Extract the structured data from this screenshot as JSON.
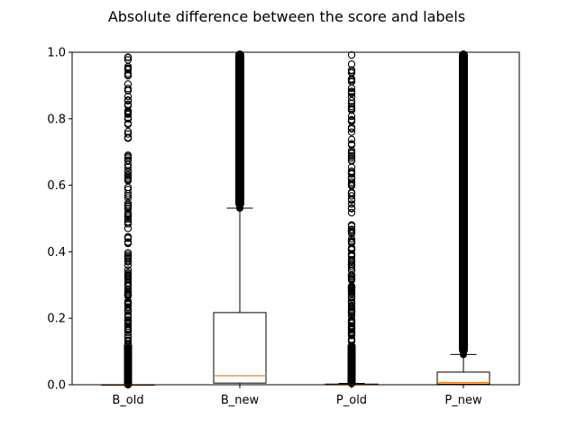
{
  "chart_data": {
    "type": "boxplot",
    "title": "Absolute difference between the score and labels",
    "xlabel": "",
    "ylabel": "",
    "ylim": [
      0,
      1.0
    ],
    "yticks": [
      "0.0",
      "0.2",
      "0.4",
      "0.6",
      "0.8",
      "1.0"
    ],
    "categories": [
      "B_old",
      "B_new",
      "P_old",
      "P_new"
    ],
    "boxes": [
      {
        "name": "B_old",
        "whisker_low": 0.0,
        "q1": 0.0,
        "median": 0.0,
        "q3": 0.0,
        "whisker_high": 0.0,
        "outliers_from": 0.0,
        "outliers_to": 1.0,
        "outlier_density": "sparse"
      },
      {
        "name": "B_new",
        "whisker_low": 0.0,
        "q1": 0.005,
        "median": 0.027,
        "q3": 0.217,
        "whisker_high": 0.531,
        "outliers_from": 0.531,
        "outliers_to": 1.0,
        "outlier_density": "dense"
      },
      {
        "name": "P_old",
        "whisker_low": 0.0,
        "q1": 0.0,
        "median": 0.0,
        "q3": 0.002,
        "whisker_high": 0.004,
        "outliers_from": 0.004,
        "outliers_to": 1.0,
        "outlier_density": "sparse"
      },
      {
        "name": "P_new",
        "whisker_low": 0.0,
        "q1": 0.002,
        "median": 0.007,
        "q3": 0.038,
        "whisker_high": 0.091,
        "outliers_from": 0.091,
        "outliers_to": 1.0,
        "outlier_density": "dense"
      }
    ],
    "grid": false,
    "colors": {
      "box": "#000000",
      "median": "#ff7f0e",
      "outlier": "#000000",
      "background": "#ffffff"
    }
  }
}
